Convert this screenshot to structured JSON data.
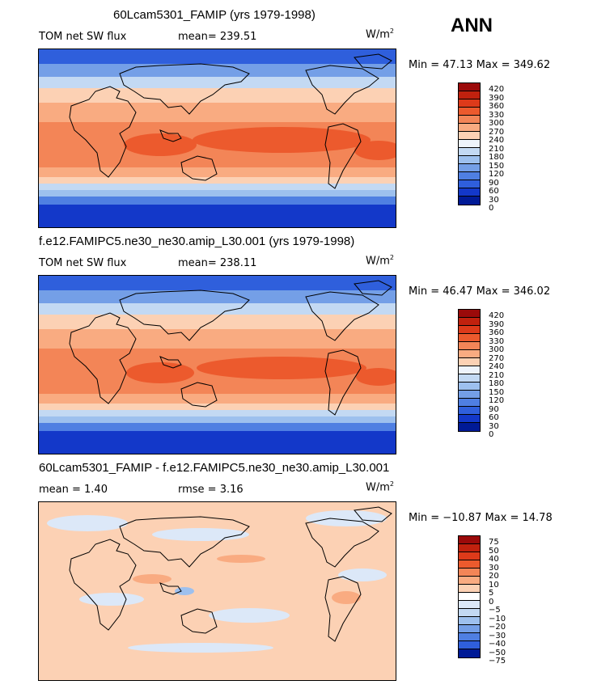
{
  "season": "ANN",
  "units": "W/m",
  "units_exp": "2",
  "panels": [
    {
      "title": "60Lcam5301_FAMIP (yrs 1979-1998)",
      "variable": "TOM net SW flux",
      "stat": "mean= 239.51",
      "minmax": "Min =  47.13 Max = 349.62",
      "levels": [
        "420",
        "390",
        "360",
        "330",
        "300",
        "270",
        "240",
        "210",
        "180",
        "150",
        "120",
        "90",
        "60",
        "30",
        "0"
      ],
      "colors": [
        "#9b0a0a",
        "#c0210e",
        "#dd3a1a",
        "#ec5a2d",
        "#f38557",
        "#f9ab81",
        "#fcd1b4",
        "#eef3fb",
        "#c3d9f3",
        "#9dc0ee",
        "#749fe7",
        "#4f7fe2",
        "#2f5fdc",
        "#1338c9",
        "#001a96"
      ]
    },
    {
      "title": "f.e12.FAMIPC5.ne30_ne30.amip_L30.001 (yrs 1979-1998)",
      "variable": "TOM net SW flux",
      "stat": "mean= 238.11",
      "minmax": "Min =  46.47 Max = 346.02",
      "levels": [
        "420",
        "390",
        "360",
        "330",
        "300",
        "270",
        "240",
        "210",
        "180",
        "150",
        "120",
        "90",
        "60",
        "30",
        "0"
      ],
      "colors": [
        "#9b0a0a",
        "#c0210e",
        "#dd3a1a",
        "#ec5a2d",
        "#f38557",
        "#f9ab81",
        "#fcd1b4",
        "#eef3fb",
        "#c3d9f3",
        "#9dc0ee",
        "#749fe7",
        "#4f7fe2",
        "#2f5fdc",
        "#1338c9",
        "#001a96"
      ]
    },
    {
      "title": "60Lcam5301_FAMIP - f.e12.FAMIPC5.ne30_ne30.amip_L30.001",
      "variable": "mean =    1.40",
      "stat": "rmse =    3.16",
      "minmax": "Min = −10.87 Max =  14.78",
      "levels": [
        "75",
        "50",
        "40",
        "30",
        "20",
        "10",
        "5",
        "0",
        "−5",
        "−10",
        "−20",
        "−30",
        "−40",
        "−50",
        "−75"
      ],
      "colors": [
        "#9b0a0a",
        "#c0210e",
        "#dd3a1a",
        "#ec5a2d",
        "#f38557",
        "#f9ab81",
        "#fcd1b4",
        "#ffffff",
        "#dce8f8",
        "#c3d9f3",
        "#9dc0ee",
        "#749fe7",
        "#4f7fe2",
        "#2f5fdc",
        "#001a96"
      ]
    }
  ]
}
